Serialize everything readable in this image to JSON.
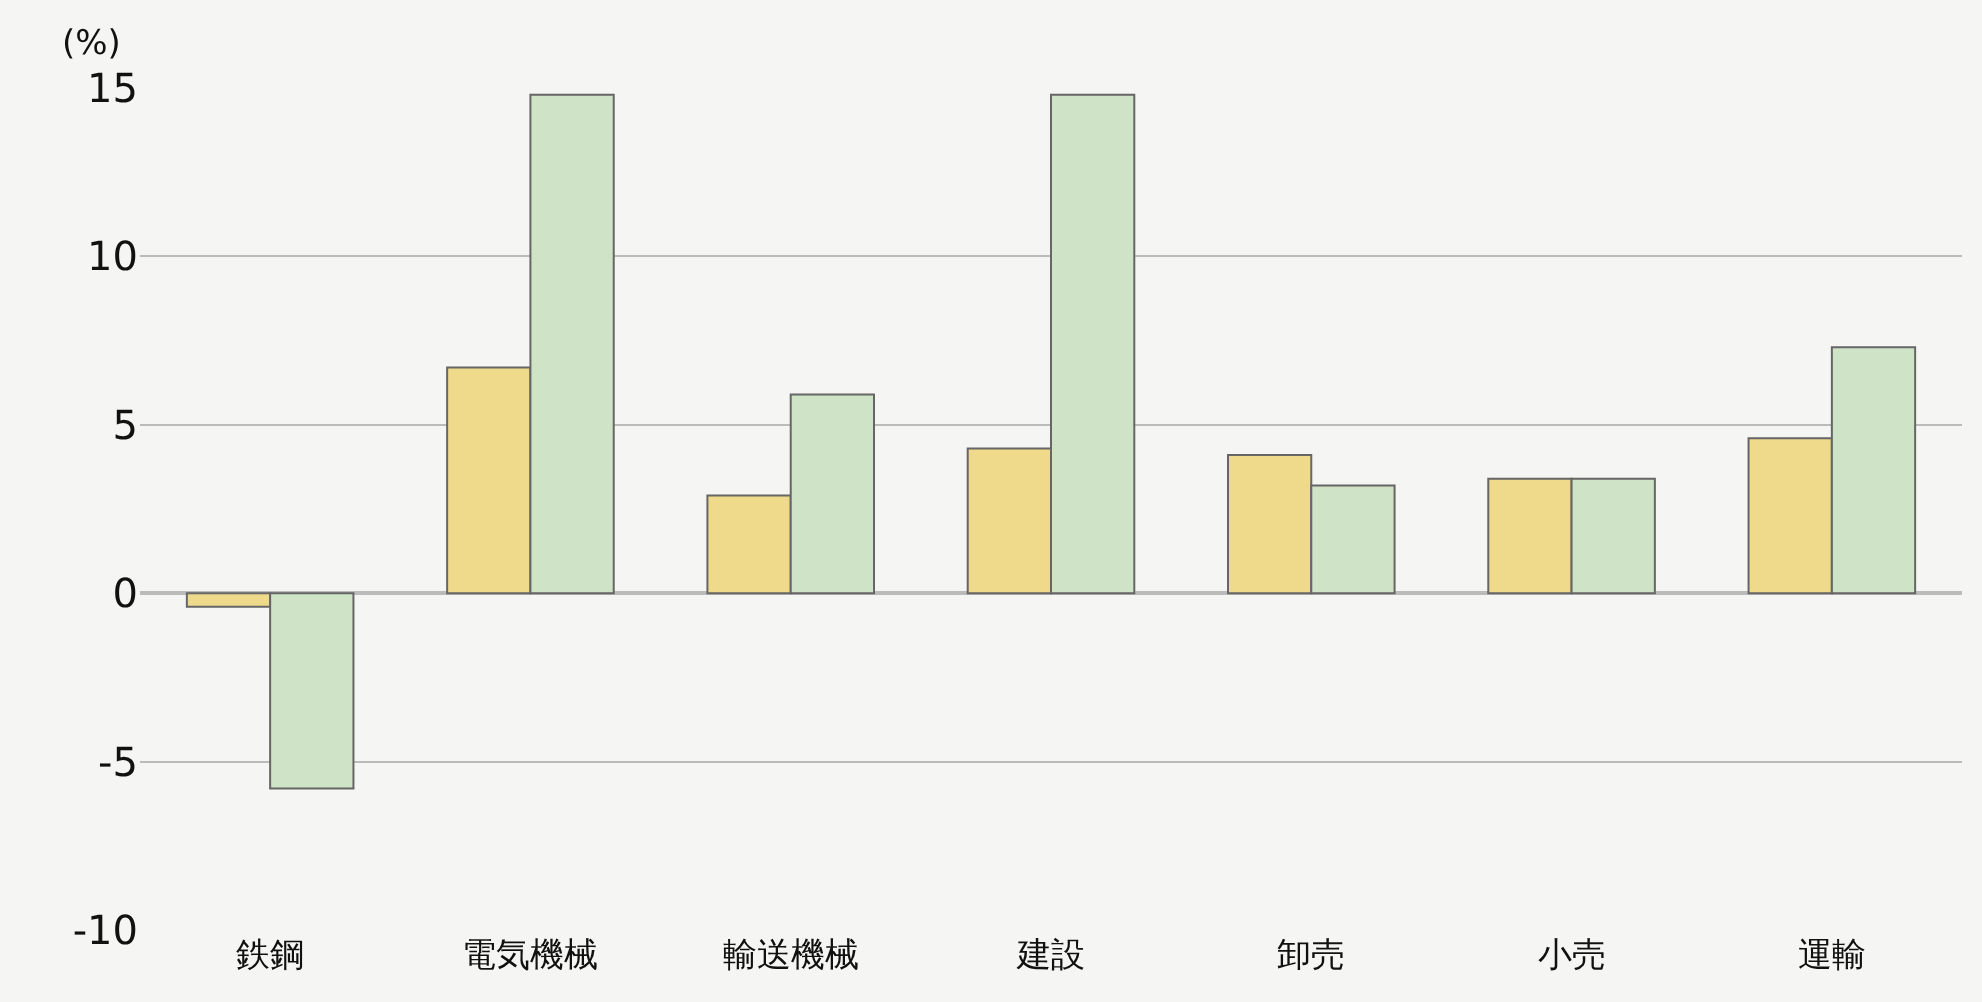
{
  "chart_data": {
    "type": "bar",
    "ylabel": "(%)",
    "categories": [
      "鉄鋼",
      "電気機械",
      "輸送機械",
      "建設",
      "卸売",
      "小売",
      "運輸"
    ],
    "series": [
      {
        "color": "#efd98a",
        "values": [
          -0.4,
          6.7,
          2.9,
          4.3,
          4.1,
          3.4,
          4.6
        ]
      },
      {
        "color": "#cfe3c6",
        "values": [
          -5.8,
          14.8,
          5.9,
          14.8,
          3.2,
          3.4,
          7.3
        ]
      }
    ],
    "ylim": [
      -10,
      15
    ],
    "yticks": [
      -10,
      -5,
      0,
      5,
      10,
      15
    ],
    "grid": "y"
  }
}
